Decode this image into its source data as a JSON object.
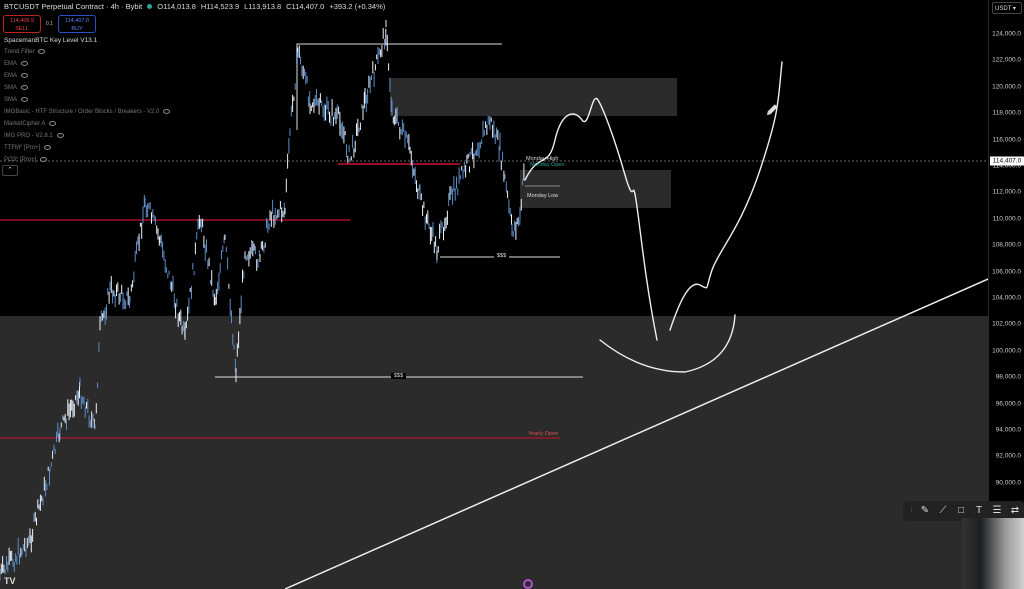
{
  "header": {
    "symbol": "BTCUSDT Perpetual Contract · 4h · Bybit",
    "open": "O114,013.8",
    "high": "H114,523.9",
    "low": "L113,913.8",
    "close": "C114,407.0",
    "change": "+393.2 (+0.34%)"
  },
  "trade": {
    "sell_price": "114,406.9",
    "sell_label": "SELL",
    "qty": "0.1",
    "buy_price": "114,407.0",
    "buy_label": "BUY"
  },
  "indicators": [
    "SpacemanBTC Key Level V13.1",
    "Trend Filter",
    "EMA",
    "EMA",
    "SMA",
    "SMA",
    "IMGBasic - HTF Structure / Order Blocks / Breakers - V2.0",
    "MarketCipher A",
    "IMG PRO - V2.8.1",
    "TTFM° [Pro+]",
    "PO3° [Pro+]"
  ],
  "axis": {
    "currency": "USDT",
    "ticks": [
      "124,000.0",
      "122,000.0",
      "120,000.0",
      "118,000.0",
      "116,000.0",
      "114,000.0",
      "112,000.0",
      "110,000.0",
      "108,000.0",
      "106,000.0",
      "104,000.0",
      "102,000.0",
      "100,000.0",
      "98,000.0",
      "96,000.0",
      "94,000.0",
      "92,000.0",
      "90,000.0"
    ],
    "current_price": "114,407.0"
  },
  "labels": {
    "monday_high": "Monday High",
    "monday_open": "Monday Open",
    "monday_low": "Monday Low",
    "liquidity_upper": "$$$",
    "liquidity_lower": "$$$",
    "yearly_open": "Yearly Open"
  },
  "toolbar": [
    "brush-icon",
    "trend-line-icon",
    "rectangle-icon",
    "text-icon",
    "fib-icon",
    "settings-icon"
  ],
  "colors": {
    "red_level": "#c8102e",
    "zone": "#2b2b2b",
    "candle": "#d8e6f5",
    "monday_open": "#26a69a"
  }
}
